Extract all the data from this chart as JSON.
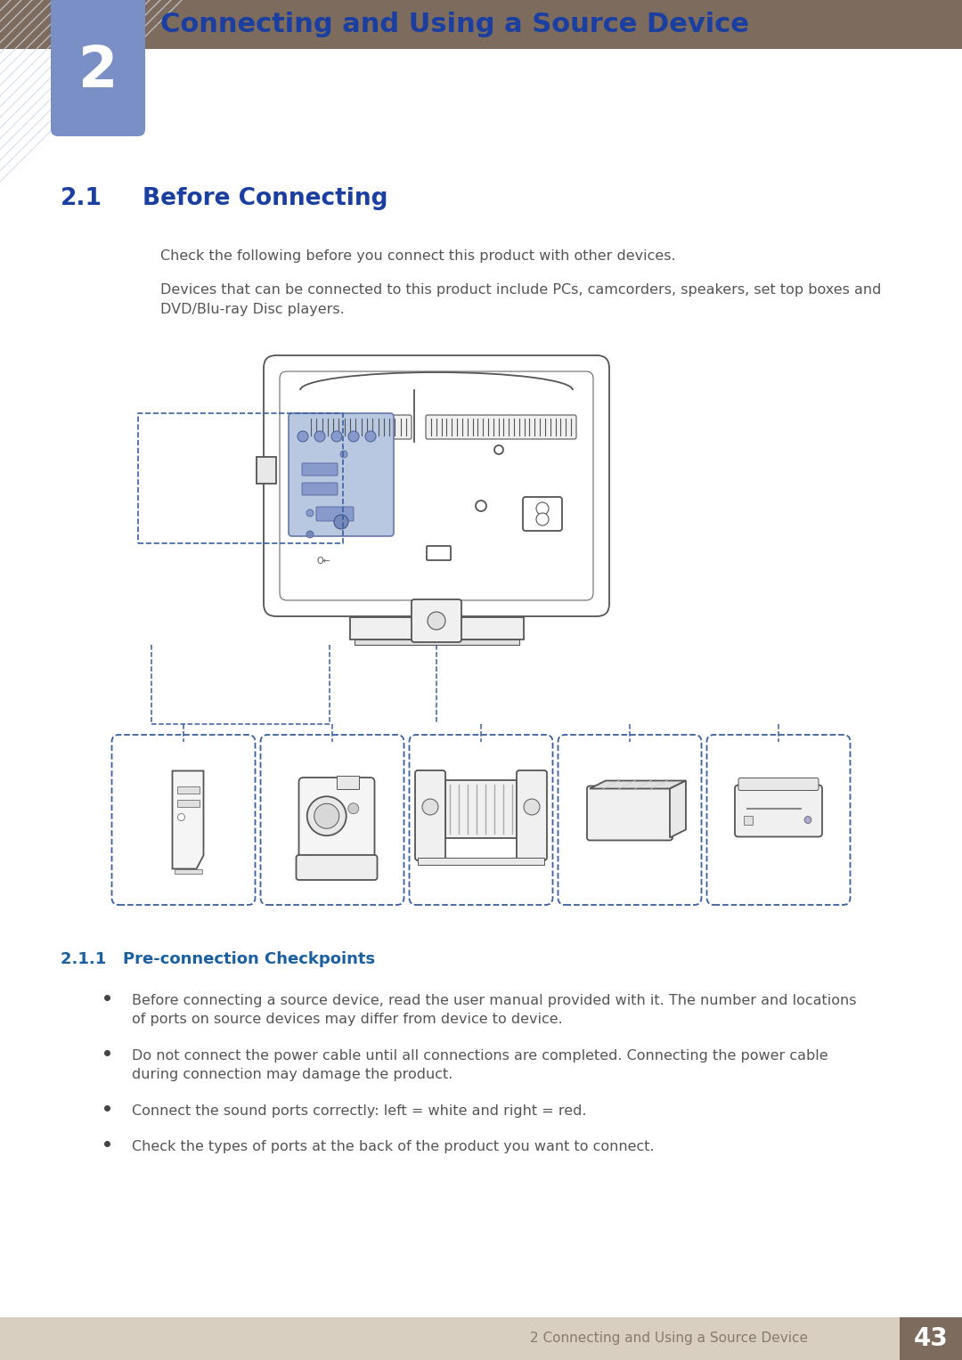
{
  "page_bg": "#ffffff",
  "header_bar_color": "#7d6b5e",
  "header_bar_height": 55,
  "chapter_box_color": "#7b8fc7",
  "chapter_number": "2",
  "chapter_title": "Connecting and Using a Source Device",
  "chapter_title_color": "#1a3fa0",
  "section_title_num": "2.1",
  "section_title_text": "Before Connecting",
  "section_title_color": "#1a3fa0",
  "subsection_title": "2.1.1   Pre-connection Checkpoints",
  "subsection_title_color": "#1a5fa0",
  "body_text_color": "#555555",
  "para1": "Check the following before you connect this product with other devices.",
  "para2": "Devices that can be connected to this product include PCs, camcorders, speakers, set top boxes and\nDVD/Blu-ray Disc players.",
  "bullet1": "Before connecting a source device, read the user manual provided with it. The number and locations\nof ports on source devices may differ from device to device.",
  "bullet2": "Do not connect the power cable until all connections are completed. Connecting the power cable\nduring connection may damage the product.",
  "bullet3": "Connect the sound ports correctly: left = white and right = red.",
  "bullet4": "Check the types of ports at the back of the product you want to connect.",
  "footer_bg": "#d8cfc0",
  "footer_text": "2 Connecting and Using a Source Device",
  "footer_page": "43",
  "footer_page_bg": "#7d6b5e",
  "diagram_line_color": "#3a5fa0",
  "monitor_edge": "#555555",
  "monitor_fill": "#ffffff"
}
